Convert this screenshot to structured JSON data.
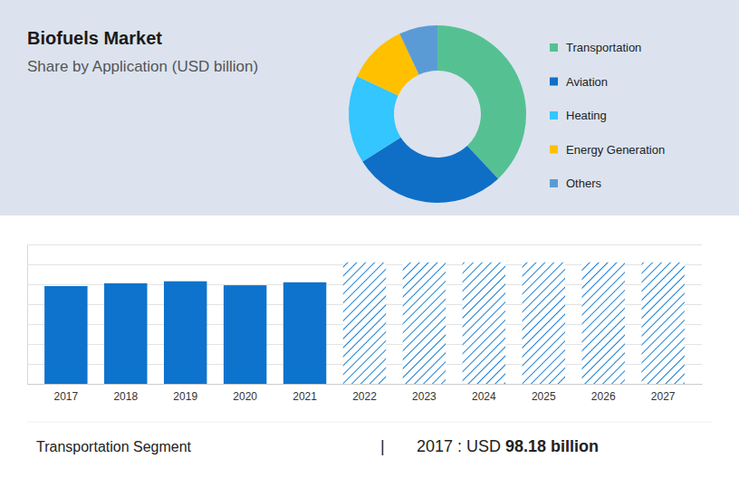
{
  "chart_data": [
    {
      "type": "donut",
      "title": "Biofuels Market",
      "subtitle": "Share by Application (USD billion)",
      "categories": [
        "Transportation",
        "Aviation",
        "Heating",
        "Energy Generation",
        "Others"
      ],
      "values": [
        38,
        28,
        16,
        11,
        7
      ],
      "colors": [
        "#55c193",
        "#0f6fc6",
        "#33c6ff",
        "#ffc000",
        "#5b9bd5"
      ],
      "legend": "right",
      "data_labels": false
    },
    {
      "type": "bar",
      "categories": [
        "2017",
        "2018",
        "2019",
        "2020",
        "2021",
        "2022",
        "2023",
        "2024",
        "2025",
        "2026",
        "2027"
      ],
      "series": [
        {
          "values": [
            98.18,
            101,
            103,
            99,
            102,
            null,
            null,
            null,
            null,
            null,
            null
          ],
          "color": "#0e73cc"
        },
        {
          "values": [
            null,
            null,
            null,
            null,
            null,
            122,
            122,
            122,
            122,
            122,
            122
          ],
          "color": "#1a80d6",
          "line_style": "hatched"
        }
      ],
      "ylim": [
        0,
        140
      ],
      "yticks": [
        0,
        20,
        40,
        60,
        80,
        100,
        120,
        140
      ],
      "grid": true,
      "tick_labels": "x"
    }
  ],
  "footer": {
    "segment": "Transportation Segment",
    "separator": "|",
    "period": "2017 : USD",
    "amount": "98.18 billion"
  }
}
